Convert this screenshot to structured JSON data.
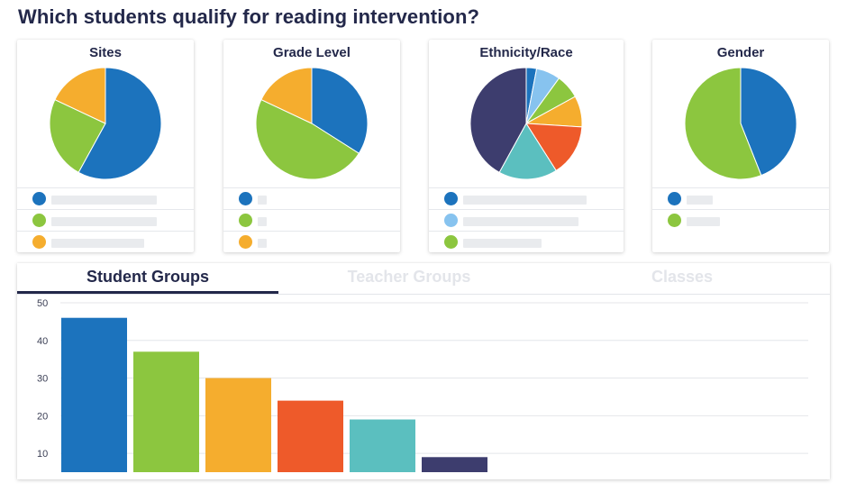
{
  "page": {
    "title": "Which students qualify for reading intervention?"
  },
  "cards": [
    {
      "title": "Sites",
      "slices": [
        {
          "value": 58,
          "color": "#1c73bd"
        },
        {
          "value": 24,
          "color": "#8cc63f"
        },
        {
          "value": 18,
          "color": "#f5ad2e"
        }
      ],
      "legend": [
        {
          "color": "#1c73bd",
          "fill": 0.86
        },
        {
          "color": "#8cc63f",
          "fill": 0.86
        },
        {
          "color": "#f5ad2e",
          "fill": 0.76
        }
      ]
    },
    {
      "title": "Grade Level",
      "slices": [
        {
          "value": 34,
          "color": "#1c73bd"
        },
        {
          "value": 48,
          "color": "#8cc63f"
        },
        {
          "value": 18,
          "color": "#f5ad2e"
        }
      ],
      "legend": [
        {
          "color": "#1c73bd",
          "fill": 0.07
        },
        {
          "color": "#8cc63f",
          "fill": 0.07
        },
        {
          "color": "#f5ad2e",
          "fill": 0.07
        }
      ]
    },
    {
      "title": "Ethnicity/Race",
      "slices": [
        {
          "value": 3,
          "color": "#1c73bd"
        },
        {
          "value": 7,
          "color": "#87c3ef"
        },
        {
          "value": 7,
          "color": "#8cc63f"
        },
        {
          "value": 9,
          "color": "#f5ad2e"
        },
        {
          "value": 15,
          "color": "#ee5a2a"
        },
        {
          "value": 17,
          "color": "#5bbfbf"
        },
        {
          "value": 42,
          "color": "#3d3d6e"
        }
      ],
      "legend": [
        {
          "color": "#1c73bd",
          "fill": 0.88
        },
        {
          "color": "#87c3ef",
          "fill": 0.82
        },
        {
          "color": "#8cc63f",
          "fill": 0.56
        }
      ]
    },
    {
      "title": "Gender",
      "slices": [
        {
          "value": 44,
          "color": "#1c73bd"
        },
        {
          "value": 56,
          "color": "#8cc63f"
        }
      ],
      "legend": [
        {
          "color": "#1c73bd",
          "fill": 0.21
        },
        {
          "color": "#8cc63f",
          "fill": 0.27
        }
      ]
    }
  ],
  "tabs": [
    {
      "label": "Student Groups",
      "active": true
    },
    {
      "label": "Teacher Groups",
      "active": false
    },
    {
      "label": "Classes",
      "active": false
    }
  ],
  "chart_data": {
    "type": "bar",
    "categories": [
      "",
      "",
      "",
      "",
      "",
      ""
    ],
    "values": [
      46,
      37,
      30,
      24,
      19,
      9
    ],
    "colors": [
      "#1c73bd",
      "#8cc63f",
      "#f5ad2e",
      "#ee5a2a",
      "#5bbfbf",
      "#3d3d6e"
    ],
    "yticks": [
      10,
      20,
      30,
      40,
      50
    ],
    "ylim": [
      5,
      50
    ],
    "grid": true,
    "title": "",
    "xlabel": "",
    "ylabel": ""
  }
}
